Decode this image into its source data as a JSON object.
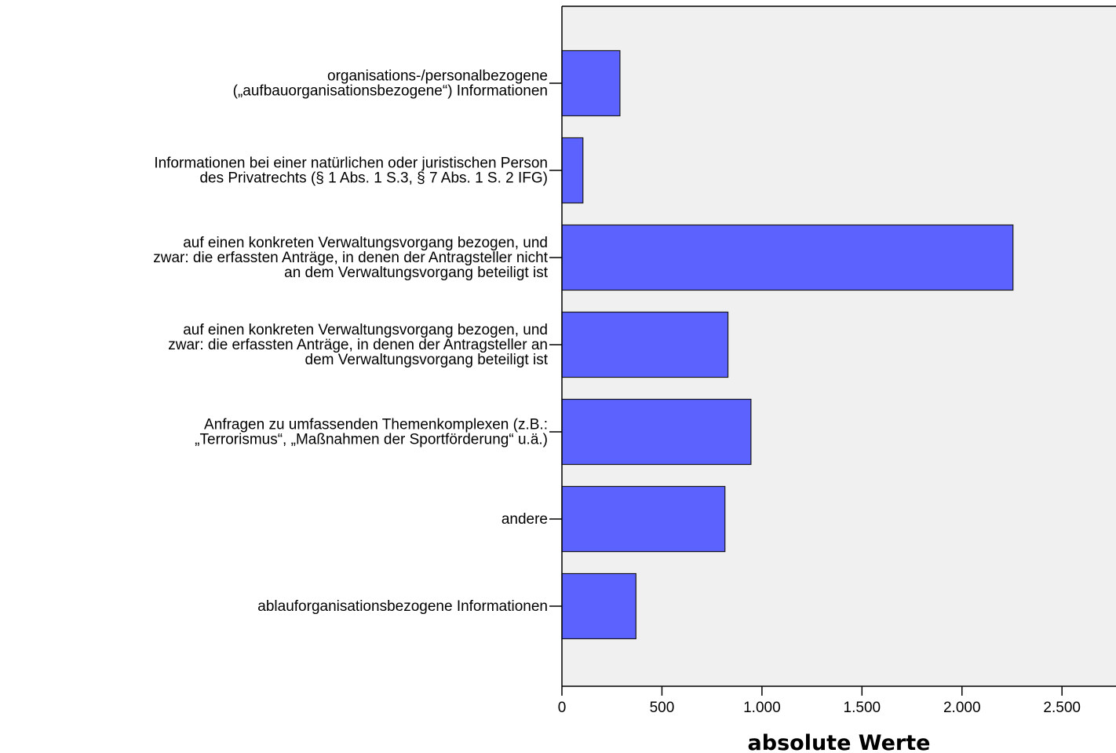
{
  "chart_data": {
    "type": "bar",
    "orientation": "horizontal",
    "title": "",
    "xlabel": "absolute Werte",
    "ylabel": "",
    "categories": [
      [
        "organisations-/personalbezogene",
        "(„aufbauorganisationsbezogene“) Informationen"
      ],
      [
        "Informationen bei einer natürlichen oder juristischen Person",
        "des Privatrechts (§ 1 Abs. 1 S.3, § 7 Abs. 1 S. 2 IFG)"
      ],
      [
        "auf einen konkreten Verwaltungsvorgang bezogen, und",
        "zwar: die erfassten Anträge, in denen der Antragsteller nicht",
        "an dem Verwaltungsvorgang beteiligt ist"
      ],
      [
        "auf einen konkreten Verwaltungsvorgang bezogen, und",
        "zwar: die erfassten Anträge, in denen der Antragsteller an",
        "dem Verwaltungsvorgang beteiligt ist"
      ],
      [
        "Anfragen zu umfassenden Themenkomplexen (z.B.:",
        "„Terrorismus“, „Maßnahmen der Sportförderung“ u.ä.)"
      ],
      [
        "andere"
      ],
      [
        "ablauforganisationsbezogene Informationen"
      ]
    ],
    "values": [
      290,
      105,
      2255,
      830,
      945,
      815,
      370
    ],
    "xlim": [
      0,
      2770
    ],
    "xticks": [
      0,
      500,
      1000,
      1500,
      2000,
      2500
    ],
    "xtick_labels": [
      "0",
      "500",
      "1.000",
      "1.500",
      "2.000",
      "2.500"
    ],
    "grid": false,
    "legend": "none",
    "colors": {
      "bar_fill": "#5b62fe",
      "bar_stroke": "#1a1a1a",
      "plot_background": "#f0f0f0",
      "axis": "#000000"
    }
  }
}
